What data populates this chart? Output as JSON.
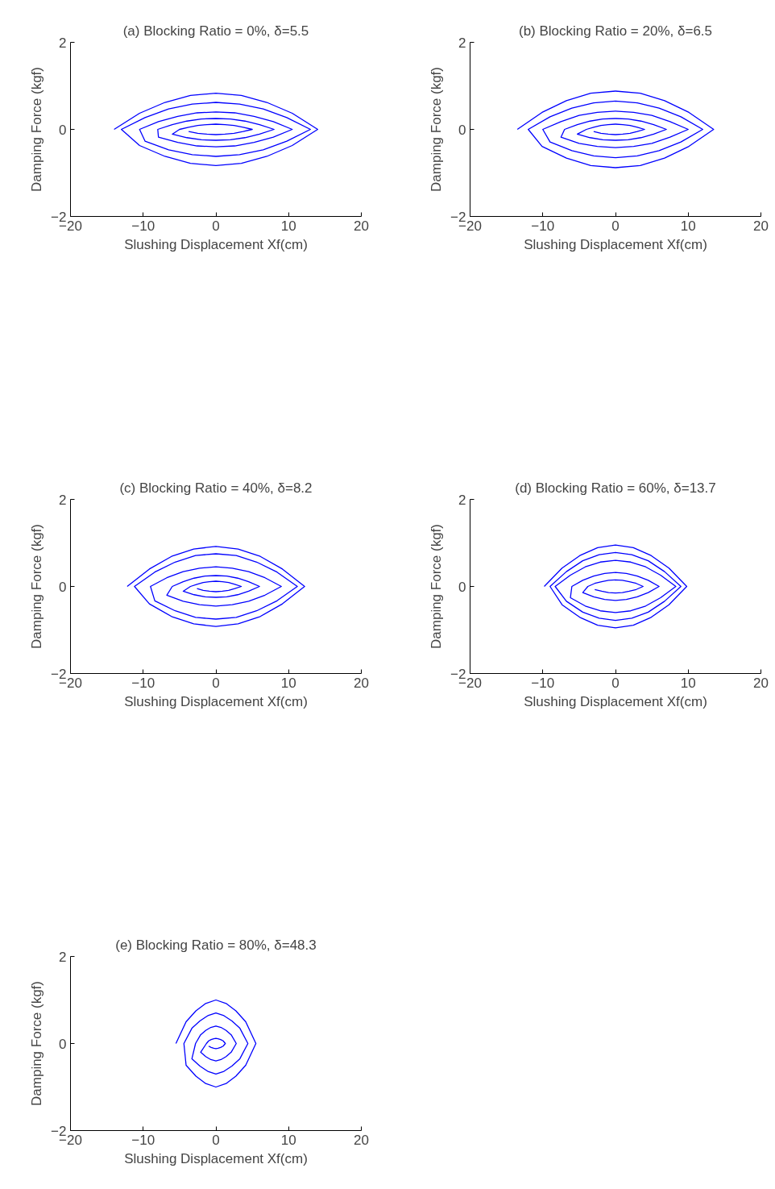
{
  "chart_data": [
    {
      "type": "line",
      "title": "(a) Blocking Ratio = 0%, δ=5.5",
      "xlabel": "Slushing Displacement Xf(cm)",
      "ylabel": "Damping Force (kgf)",
      "xlim": [
        -20,
        20
      ],
      "ylim": [
        -2,
        2
      ],
      "xticks": [
        -20,
        -10,
        0,
        10,
        20
      ],
      "yticks": [
        -2,
        0,
        2
      ],
      "series": [
        {
          "color": "#0000ff",
          "x": [
            -14,
            -10.5,
            -7,
            -3.5,
            0,
            3.5,
            7,
            10.5,
            14,
            10.5,
            7,
            3.5,
            0,
            -3.5,
            -7,
            -10.5,
            -13,
            -9.75,
            -6.5,
            -3.25,
            0,
            3.25,
            6.5,
            9.75,
            13,
            9.75,
            6.5,
            3.25,
            0,
            -3.25,
            -6.5,
            -9.75,
            -10.5,
            -7.9,
            -5.25,
            -2.6,
            0,
            2.6,
            5.25,
            7.9,
            10.5,
            7.9,
            5.25,
            2.6,
            0,
            -2.6,
            -5.25,
            -7.9,
            -8,
            -6,
            -4,
            -2,
            0,
            2,
            4,
            6,
            8,
            6,
            4,
            2,
            0,
            -2,
            -4,
            -6,
            -5,
            -3.75,
            -2.5,
            -1.25,
            0,
            1.25,
            2.5,
            3.75,
            5,
            3.75,
            2.5,
            1.25,
            0,
            -1.25,
            -2.5,
            -3.75
          ],
          "values": [
            0,
            0.37,
            0.62,
            0.78,
            0.83,
            0.78,
            0.62,
            0.37,
            0,
            -0.37,
            -0.62,
            -0.78,
            -0.83,
            -0.78,
            -0.62,
            -0.37,
            0,
            0.27,
            0.47,
            0.58,
            0.62,
            0.58,
            0.47,
            0.27,
            0,
            -0.27,
            -0.47,
            -0.58,
            -0.62,
            -0.58,
            -0.47,
            -0.27,
            0,
            0.18,
            0.3,
            0.38,
            0.4,
            0.38,
            0.3,
            0.18,
            0,
            -0.18,
            -0.3,
            -0.38,
            -0.4,
            -0.38,
            -0.3,
            -0.18,
            0,
            0.11,
            0.19,
            0.24,
            0.25,
            0.24,
            0.19,
            0.11,
            0,
            -0.11,
            -0.19,
            -0.24,
            -0.25,
            -0.24,
            -0.19,
            -0.11,
            0,
            0.05,
            0.09,
            0.11,
            0.12,
            0.11,
            0.09,
            0.05,
            0,
            -0.05,
            -0.09,
            -0.11,
            -0.12,
            -0.11,
            -0.09,
            -0.05
          ]
        }
      ]
    },
    {
      "type": "line",
      "title": "(b) Blocking Ratio = 20%, δ=6.5",
      "xlabel": "Slushing Displacement Xf(cm)",
      "ylabel": "Damping Force (kgf)",
      "xlim": [
        -20,
        20
      ],
      "ylim": [
        -2,
        2
      ],
      "xticks": [
        -20,
        -10,
        0,
        10,
        20
      ],
      "yticks": [
        -2,
        0,
        2
      ],
      "series": [
        {
          "color": "#0000ff",
          "x": [
            -13.5,
            -10.1,
            -6.75,
            -3.4,
            0,
            3.4,
            6.75,
            10.1,
            13.5,
            10.1,
            6.75,
            3.4,
            0,
            -3.4,
            -6.75,
            -10.1,
            -12,
            -9,
            -6,
            -3,
            0,
            3,
            6,
            9,
            12,
            9,
            6,
            3,
            0,
            -3,
            -6,
            -9,
            -10,
            -7.5,
            -5,
            -2.5,
            0,
            2.5,
            5,
            7.5,
            10,
            7.5,
            5,
            2.5,
            0,
            -2.5,
            -5,
            -7.5,
            -7,
            -5.25,
            -3.5,
            -1.75,
            0,
            1.75,
            3.5,
            5.25,
            7,
            5.25,
            3.5,
            1.75,
            0,
            -1.75,
            -3.5,
            -5.25,
            -4,
            -3,
            -2,
            -1,
            0,
            1,
            2,
            3,
            4,
            3,
            2,
            1,
            0,
            -1,
            -2,
            -3
          ],
          "values": [
            0,
            0.39,
            0.66,
            0.83,
            0.88,
            0.83,
            0.66,
            0.39,
            0,
            -0.39,
            -0.66,
            -0.83,
            -0.88,
            -0.83,
            -0.66,
            -0.39,
            0,
            0.29,
            0.49,
            0.61,
            0.65,
            0.61,
            0.49,
            0.29,
            0,
            -0.29,
            -0.49,
            -0.61,
            -0.65,
            -0.61,
            -0.49,
            -0.29,
            0,
            0.18,
            0.32,
            0.39,
            0.42,
            0.39,
            0.32,
            0.18,
            0,
            -0.18,
            -0.32,
            -0.39,
            -0.42,
            -0.39,
            -0.32,
            -0.18,
            0,
            0.11,
            0.19,
            0.24,
            0.25,
            0.24,
            0.19,
            0.11,
            0,
            -0.11,
            -0.19,
            -0.24,
            -0.25,
            -0.24,
            -0.19,
            -0.11,
            0,
            0.05,
            0.09,
            0.11,
            0.12,
            0.11,
            0.09,
            0.05,
            0,
            -0.05,
            -0.09,
            -0.11,
            -0.12,
            -0.11,
            -0.09,
            -0.05
          ]
        }
      ]
    },
    {
      "type": "line",
      "title": "(c) Blocking Ratio = 40%, δ=8.2",
      "xlabel": "Slushing Displacement Xf(cm)",
      "ylabel": "Damping Force (kgf)",
      "xlim": [
        -20,
        20
      ],
      "ylim": [
        -2,
        2
      ],
      "xticks": [
        -20,
        -10,
        0,
        10,
        20
      ],
      "yticks": [
        -2,
        0,
        2
      ],
      "series": [
        {
          "color": "#0000ff",
          "x": [
            -12.2,
            -9.15,
            -6.1,
            -3.05,
            0,
            3.05,
            6.1,
            9.15,
            12.2,
            9.15,
            6.1,
            3.05,
            0,
            -3.05,
            -6.1,
            -9.15,
            -11.2,
            -8.4,
            -5.6,
            -2.8,
            0,
            2.8,
            5.6,
            8.4,
            11.2,
            8.4,
            5.6,
            2.8,
            0,
            -2.8,
            -5.6,
            -8.4,
            -9,
            -6.75,
            -4.5,
            -2.25,
            0,
            2.25,
            4.5,
            6.75,
            9,
            6.75,
            4.5,
            2.25,
            0,
            -2.25,
            -4.5,
            -6.75,
            -6,
            -4.5,
            -3,
            -1.5,
            0,
            1.5,
            3,
            4.5,
            6,
            4.5,
            3,
            1.5,
            0,
            -1.5,
            -3,
            -4.5,
            -3.5,
            -2.6,
            -1.75,
            -0.9,
            0,
            0.9,
            1.75,
            2.6,
            3.5,
            2.6,
            1.75,
            0.9,
            0,
            -0.9,
            -1.75,
            -2.6
          ],
          "values": [
            0,
            0.4,
            0.69,
            0.86,
            0.92,
            0.86,
            0.69,
            0.4,
            0,
            -0.4,
            -0.69,
            -0.86,
            -0.92,
            -0.86,
            -0.69,
            -0.4,
            0,
            0.33,
            0.56,
            0.71,
            0.75,
            0.71,
            0.56,
            0.33,
            0,
            -0.33,
            -0.56,
            -0.71,
            -0.75,
            -0.71,
            -0.56,
            -0.33,
            0,
            0.2,
            0.34,
            0.42,
            0.45,
            0.42,
            0.34,
            0.2,
            0,
            -0.2,
            -0.34,
            -0.42,
            -0.45,
            -0.42,
            -0.34,
            -0.2,
            0,
            0.11,
            0.19,
            0.24,
            0.25,
            0.24,
            0.19,
            0.11,
            0,
            -0.11,
            -0.19,
            -0.24,
            -0.25,
            -0.24,
            -0.19,
            -0.11,
            0,
            0.05,
            0.09,
            0.11,
            0.12,
            0.11,
            0.09,
            0.05,
            0,
            -0.05,
            -0.09,
            -0.11,
            -0.12,
            -0.11,
            -0.09,
            -0.05
          ]
        }
      ]
    },
    {
      "type": "line",
      "title": "(d) Blocking Ratio = 60%, δ=13.7",
      "xlabel": "Slushing Displacement Xf(cm)",
      "ylabel": "Damping Force (kgf)",
      "xlim": [
        -20,
        20
      ],
      "ylim": [
        -2,
        2
      ],
      "xticks": [
        -20,
        -10,
        0,
        10,
        20
      ],
      "yticks": [
        -2,
        0,
        2
      ],
      "series": [
        {
          "color": "#0000ff",
          "x": [
            -9.8,
            -7.35,
            -4.9,
            -2.45,
            0,
            2.45,
            4.9,
            7.35,
            9.8,
            7.35,
            4.9,
            2.45,
            0,
            -2.45,
            -4.9,
            -7.35,
            -9,
            -6.75,
            -4.5,
            -2.25,
            0,
            2.25,
            4.5,
            6.75,
            9,
            6.75,
            4.5,
            2.25,
            0,
            -2.25,
            -4.5,
            -6.75,
            -8.3,
            -6.2,
            -4.15,
            -2.1,
            0,
            2.1,
            4.15,
            6.2,
            8.3,
            6.2,
            4.15,
            2.1,
            0,
            -2.1,
            -4.15,
            -6.2,
            -6,
            -4.5,
            -3,
            -1.5,
            0,
            1.5,
            3,
            4.5,
            6,
            4.5,
            3,
            1.5,
            0,
            -1.5,
            -3,
            -4.5,
            -3.8,
            -2.85,
            -1.9,
            -0.95,
            0,
            0.95,
            1.9,
            2.85,
            3.8,
            2.85,
            1.9,
            0.95,
            0,
            -0.95,
            -1.9,
            -2.85
          ],
          "values": [
            0,
            0.42,
            0.71,
            0.89,
            0.95,
            0.89,
            0.71,
            0.42,
            0,
            -0.42,
            -0.71,
            -0.89,
            -0.95,
            -0.89,
            -0.71,
            -0.42,
            0,
            0.34,
            0.59,
            0.73,
            0.78,
            0.73,
            0.59,
            0.34,
            0,
            -0.34,
            -0.59,
            -0.73,
            -0.78,
            -0.73,
            -0.59,
            -0.34,
            0,
            0.26,
            0.45,
            0.56,
            0.6,
            0.56,
            0.45,
            0.26,
            0,
            -0.26,
            -0.45,
            -0.56,
            -0.6,
            -0.56,
            -0.45,
            -0.26,
            0,
            0.14,
            0.24,
            0.3,
            0.32,
            0.3,
            0.24,
            0.14,
            0,
            -0.14,
            -0.24,
            -0.3,
            -0.32,
            -0.3,
            -0.24,
            -0.14,
            0,
            0.07,
            0.11,
            0.14,
            0.15,
            0.14,
            0.11,
            0.07,
            0,
            -0.07,
            -0.11,
            -0.14,
            -0.15,
            -0.14,
            -0.11,
            -0.07
          ]
        }
      ]
    },
    {
      "type": "line",
      "title": "(e) Blocking Ratio = 80%, δ=48.3",
      "xlabel": "Slushing Displacement Xf(cm)",
      "ylabel": "Damping Force (kgf)",
      "xlim": [
        -20,
        20
      ],
      "ylim": [
        -2,
        2
      ],
      "xticks": [
        -20,
        -10,
        0,
        10,
        20
      ],
      "yticks": [
        -2,
        0,
        2
      ],
      "series": [
        {
          "color": "#0000ff",
          "x": [
            -5.5,
            -4.1,
            -2.75,
            -1.4,
            0,
            1.4,
            2.75,
            4.1,
            5.5,
            4.1,
            2.75,
            1.4,
            0,
            -1.4,
            -2.75,
            -4.1,
            -4.4,
            -3.3,
            -2.2,
            -1.1,
            0,
            1.1,
            2.2,
            3.3,
            4.4,
            3.3,
            2.2,
            1.1,
            0,
            -1.1,
            -2.2,
            -3.3,
            -2.8,
            -2.1,
            -1.4,
            -0.7,
            0,
            0.7,
            1.4,
            2.1,
            2.8,
            2.1,
            1.4,
            0.7,
            0,
            -0.7,
            -1.4,
            -2.1,
            -1.3,
            -1,
            -0.65,
            -0.3,
            0,
            0.3,
            0.65,
            1,
            1.3,
            1,
            0.65,
            0.3,
            0,
            -0.3,
            -0.65,
            -1
          ],
          "values": [
            0,
            0.5,
            0.75,
            0.92,
            1.0,
            0.92,
            0.75,
            0.5,
            0,
            -0.5,
            -0.75,
            -0.92,
            -1.0,
            -0.92,
            -0.75,
            -0.5,
            0,
            0.35,
            0.52,
            0.64,
            0.7,
            0.64,
            0.52,
            0.35,
            0,
            -0.35,
            -0.52,
            -0.64,
            -0.7,
            -0.64,
            -0.52,
            -0.35,
            0,
            0.2,
            0.3,
            0.37,
            0.4,
            0.37,
            0.3,
            0.2,
            0,
            -0.2,
            -0.3,
            -0.37,
            -0.4,
            -0.37,
            -0.3,
            -0.2,
            0,
            0.06,
            0.09,
            0.11,
            0.12,
            0.11,
            0.09,
            0.06,
            0,
            -0.06,
            -0.09,
            -0.11,
            -0.12,
            -0.11,
            -0.09,
            -0.06
          ]
        }
      ]
    }
  ]
}
